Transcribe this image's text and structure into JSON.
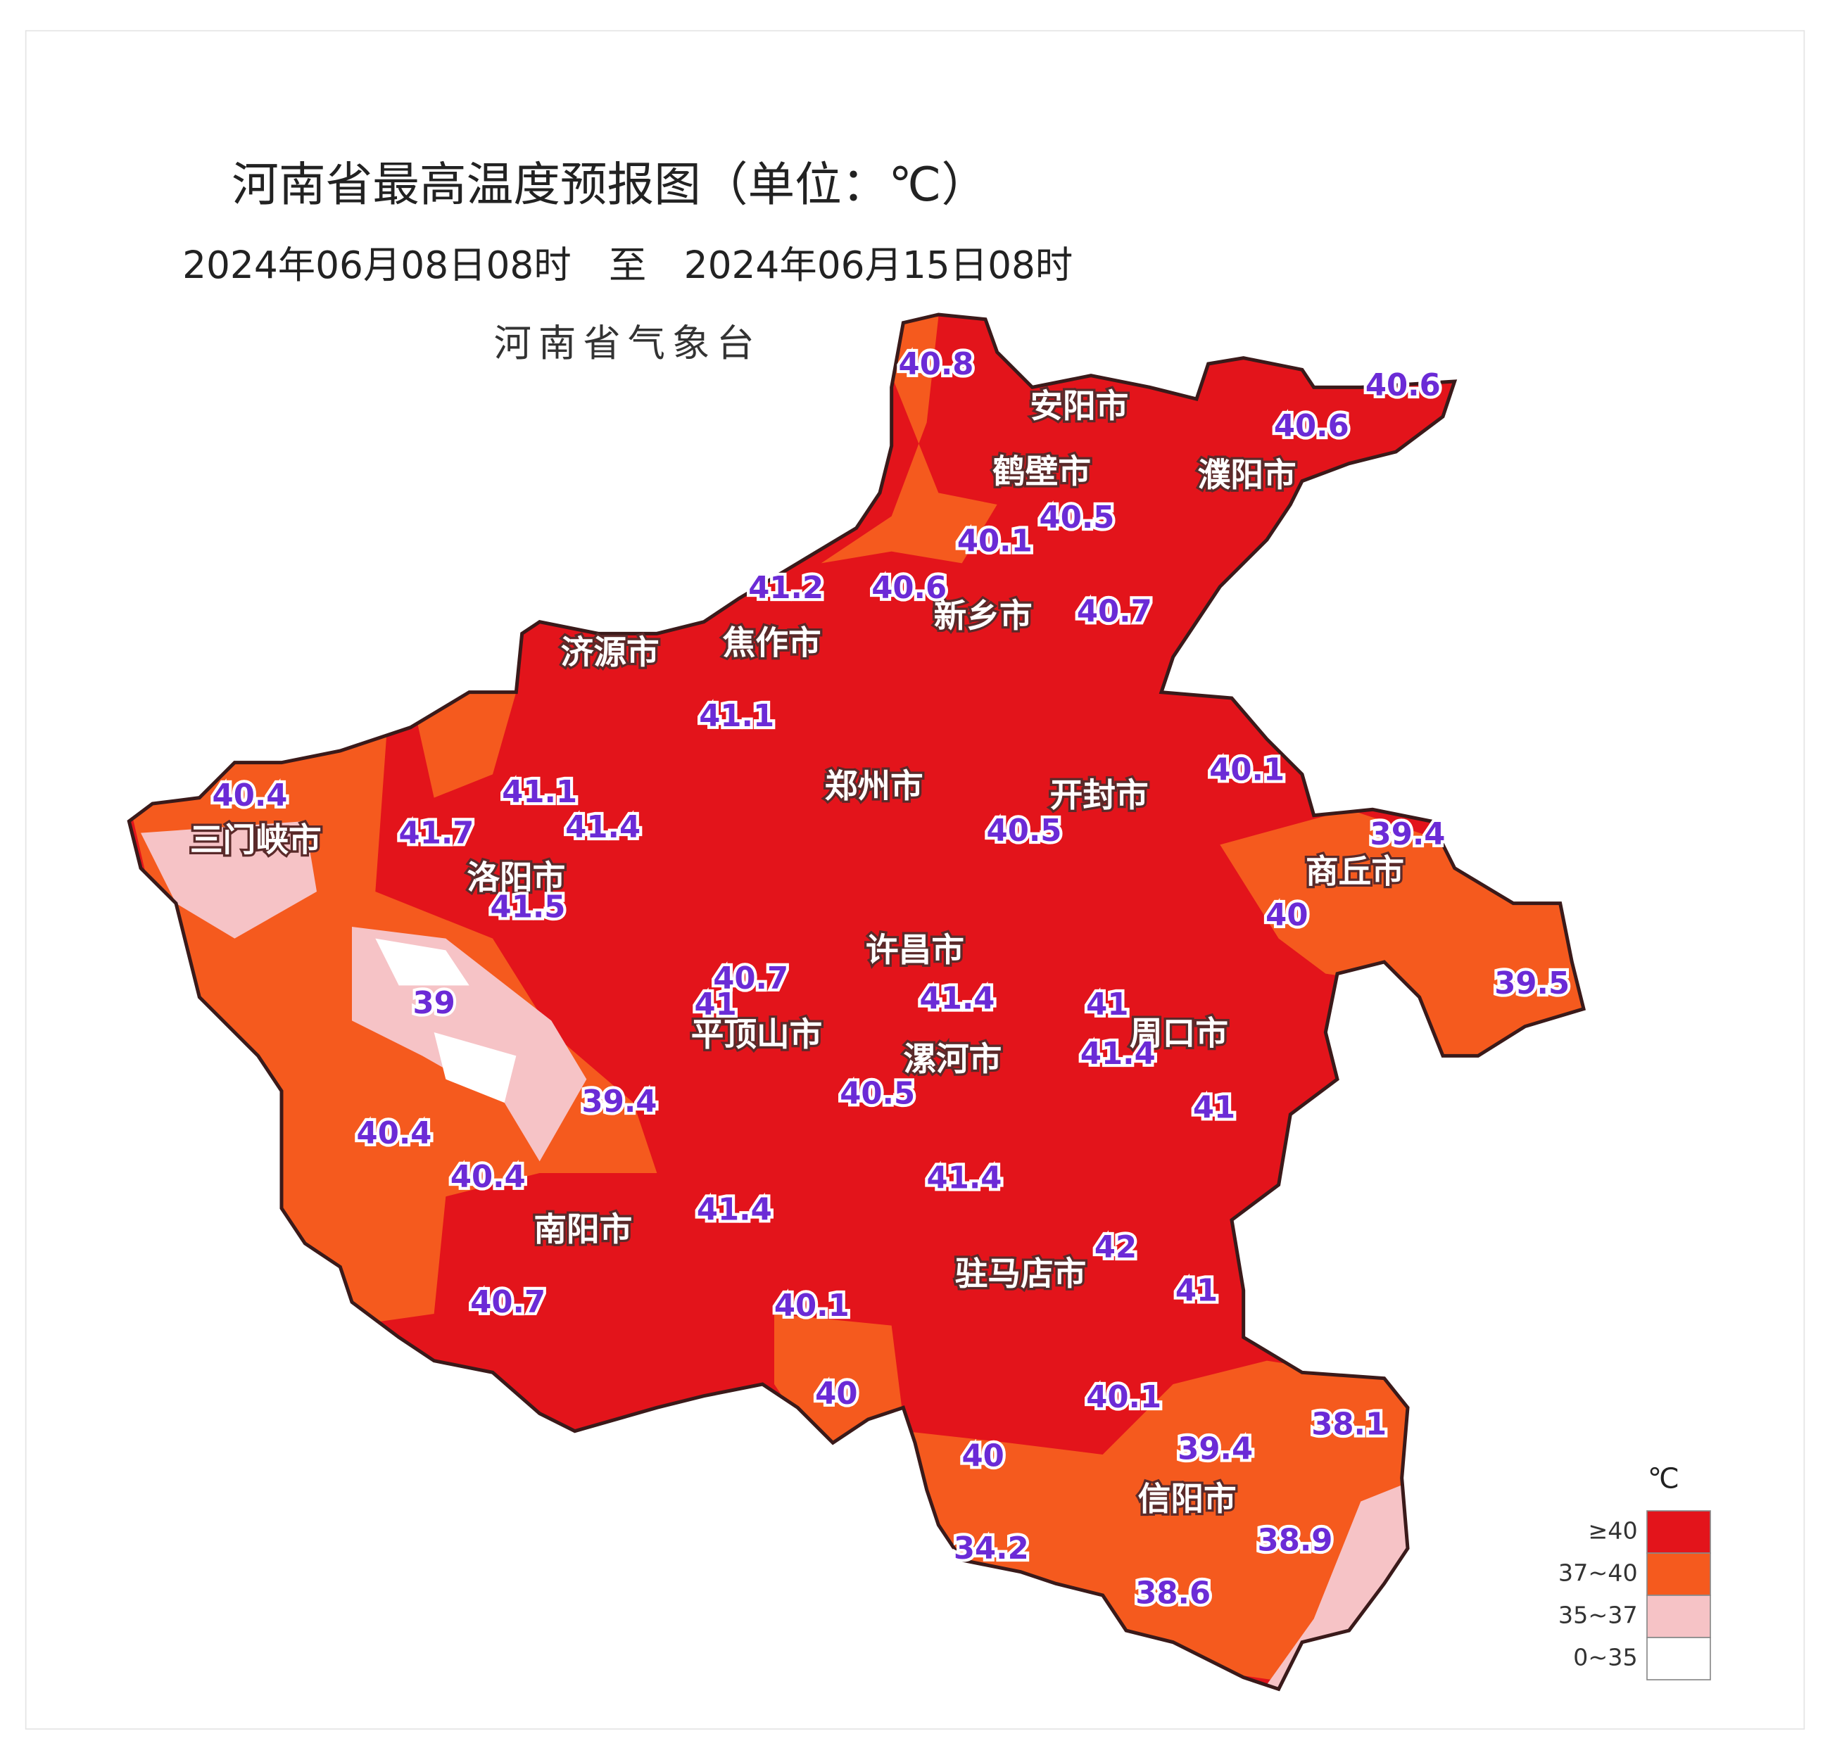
{
  "header": {
    "title": "河南省最高温度预报图（单位：℃）",
    "subtitle": "2024年06月08日08时　至　2024年06月15日08时",
    "issuer": "河南省气象台"
  },
  "cities": [
    "安阳市",
    "鹤壁市",
    "濮阳市",
    "新乡市",
    "济源市",
    "焦作市",
    "郑州市",
    "开封市",
    "三门峡市",
    "洛阳市",
    "商丘市",
    "许昌市",
    "平顶山市",
    "漯河市",
    "周口市",
    "南阳市",
    "驻马店市",
    "信阳市"
  ],
  "temperatures": [
    40.8,
    40.6,
    40.6,
    40.5,
    40.1,
    40.6,
    40.7,
    41.2,
    41.1,
    40.4,
    41.1,
    41.7,
    41.4,
    41.5,
    40.5,
    40.1,
    39.4,
    40,
    39.5,
    39,
    40.7,
    41,
    41.4,
    41,
    41.4,
    40.5,
    39.4,
    41,
    40.4,
    40.4,
    41.4,
    41.4,
    42,
    41,
    40.7,
    40.1,
    40,
    40.1,
    38.1,
    39.4,
    40,
    34.2,
    38.9,
    38.6
  ],
  "legend": {
    "unit": "℃",
    "items": [
      {
        "label": "≥40",
        "color": "#e3141b"
      },
      {
        "label": "37~40",
        "color": "#f55a1e"
      },
      {
        "label": "35~37",
        "color": "#f6c3c6"
      },
      {
        "label": "0~35",
        "color": "#ffffff"
      }
    ]
  }
}
